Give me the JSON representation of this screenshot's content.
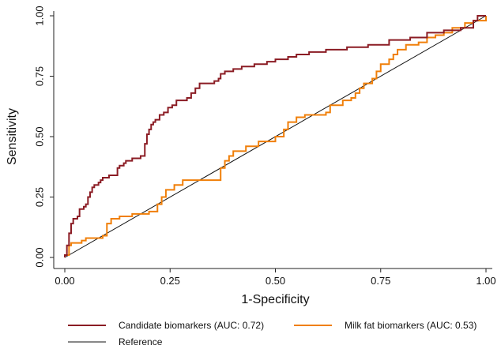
{
  "chart_data": {
    "type": "line",
    "title": "",
    "xlabel": "1-Specificity",
    "ylabel": "Sensitivity",
    "xlim": [
      0,
      1
    ],
    "ylim": [
      0,
      1
    ],
    "x_ticks": [
      "0.00",
      "0.25",
      "0.50",
      "0.75",
      "1.00"
    ],
    "y_ticks": [
      "0.00",
      "0.25",
      "0.50",
      "0.75",
      "1.00"
    ],
    "grid": false,
    "legend_position": "bottom",
    "series": [
      {
        "name": "Candidate biomarkers (AUC: 0.72)",
        "color": "#8b1c24",
        "points": [
          [
            0.0,
            0.0
          ],
          [
            0.0,
            0.01
          ],
          [
            0.005,
            0.02
          ],
          [
            0.005,
            0.05
          ],
          [
            0.01,
            0.06
          ],
          [
            0.01,
            0.1
          ],
          [
            0.015,
            0.11
          ],
          [
            0.015,
            0.14
          ],
          [
            0.02,
            0.16
          ],
          [
            0.03,
            0.17
          ],
          [
            0.035,
            0.2
          ],
          [
            0.045,
            0.21
          ],
          [
            0.05,
            0.22
          ],
          [
            0.055,
            0.25
          ],
          [
            0.06,
            0.27
          ],
          [
            0.065,
            0.29
          ],
          [
            0.07,
            0.3
          ],
          [
            0.08,
            0.31
          ],
          [
            0.085,
            0.32
          ],
          [
            0.09,
            0.33
          ],
          [
            0.1,
            0.33
          ],
          [
            0.105,
            0.34
          ],
          [
            0.12,
            0.34
          ],
          [
            0.125,
            0.37
          ],
          [
            0.13,
            0.38
          ],
          [
            0.14,
            0.39
          ],
          [
            0.145,
            0.4
          ],
          [
            0.16,
            0.41
          ],
          [
            0.17,
            0.41
          ],
          [
            0.18,
            0.42
          ],
          [
            0.19,
            0.43
          ],
          [
            0.19,
            0.47
          ],
          [
            0.195,
            0.51
          ],
          [
            0.2,
            0.53
          ],
          [
            0.205,
            0.55
          ],
          [
            0.21,
            0.56
          ],
          [
            0.215,
            0.57
          ],
          [
            0.225,
            0.59
          ],
          [
            0.235,
            0.6
          ],
          [
            0.245,
            0.62
          ],
          [
            0.255,
            0.63
          ],
          [
            0.265,
            0.65
          ],
          [
            0.28,
            0.65
          ],
          [
            0.29,
            0.66
          ],
          [
            0.3,
            0.68
          ],
          [
            0.31,
            0.7
          ],
          [
            0.32,
            0.72
          ],
          [
            0.34,
            0.72
          ],
          [
            0.355,
            0.73
          ],
          [
            0.365,
            0.74
          ],
          [
            0.37,
            0.76
          ],
          [
            0.38,
            0.77
          ],
          [
            0.4,
            0.78
          ],
          [
            0.42,
            0.79
          ],
          [
            0.45,
            0.8
          ],
          [
            0.48,
            0.81
          ],
          [
            0.5,
            0.82
          ],
          [
            0.53,
            0.83
          ],
          [
            0.55,
            0.84
          ],
          [
            0.58,
            0.85
          ],
          [
            0.62,
            0.86
          ],
          [
            0.67,
            0.87
          ],
          [
            0.72,
            0.88
          ],
          [
            0.77,
            0.9
          ],
          [
            0.82,
            0.91
          ],
          [
            0.86,
            0.93
          ],
          [
            0.9,
            0.94
          ],
          [
            0.94,
            0.95
          ],
          [
            0.97,
            0.98
          ],
          [
            0.98,
            1.0
          ],
          [
            1.0,
            1.0
          ]
        ]
      },
      {
        "name": "Milk fat biomarkers (AUC: 0.53)",
        "color": "#f07f09",
        "points": [
          [
            0.0,
            0.0
          ],
          [
            0.0,
            0.01
          ],
          [
            0.01,
            0.02
          ],
          [
            0.01,
            0.05
          ],
          [
            0.015,
            0.06
          ],
          [
            0.04,
            0.07
          ],
          [
            0.05,
            0.08
          ],
          [
            0.09,
            0.09
          ],
          [
            0.1,
            0.1
          ],
          [
            0.1,
            0.14
          ],
          [
            0.11,
            0.16
          ],
          [
            0.13,
            0.17
          ],
          [
            0.16,
            0.18
          ],
          [
            0.2,
            0.19
          ],
          [
            0.22,
            0.22
          ],
          [
            0.23,
            0.25
          ],
          [
            0.24,
            0.28
          ],
          [
            0.26,
            0.3
          ],
          [
            0.28,
            0.32
          ],
          [
            0.3,
            0.32
          ],
          [
            0.37,
            0.33
          ],
          [
            0.37,
            0.37
          ],
          [
            0.38,
            0.4
          ],
          [
            0.39,
            0.42
          ],
          [
            0.4,
            0.44
          ],
          [
            0.43,
            0.46
          ],
          [
            0.46,
            0.48
          ],
          [
            0.5,
            0.5
          ],
          [
            0.52,
            0.53
          ],
          [
            0.53,
            0.56
          ],
          [
            0.55,
            0.58
          ],
          [
            0.57,
            0.59
          ],
          [
            0.62,
            0.6
          ],
          [
            0.63,
            0.63
          ],
          [
            0.66,
            0.65
          ],
          [
            0.68,
            0.66
          ],
          [
            0.69,
            0.68
          ],
          [
            0.7,
            0.7
          ],
          [
            0.71,
            0.72
          ],
          [
            0.73,
            0.74
          ],
          [
            0.74,
            0.77
          ],
          [
            0.75,
            0.8
          ],
          [
            0.77,
            0.82
          ],
          [
            0.78,
            0.84
          ],
          [
            0.79,
            0.86
          ],
          [
            0.81,
            0.88
          ],
          [
            0.84,
            0.89
          ],
          [
            0.86,
            0.91
          ],
          [
            0.88,
            0.92
          ],
          [
            0.9,
            0.93
          ],
          [
            0.92,
            0.95
          ],
          [
            0.95,
            0.97
          ],
          [
            0.97,
            0.98
          ],
          [
            1.0,
            1.0
          ]
        ]
      },
      {
        "name": "Reference",
        "color": "#111111",
        "points": [
          [
            0.0,
            0.0
          ],
          [
            1.0,
            1.0
          ]
        ]
      }
    ]
  }
}
